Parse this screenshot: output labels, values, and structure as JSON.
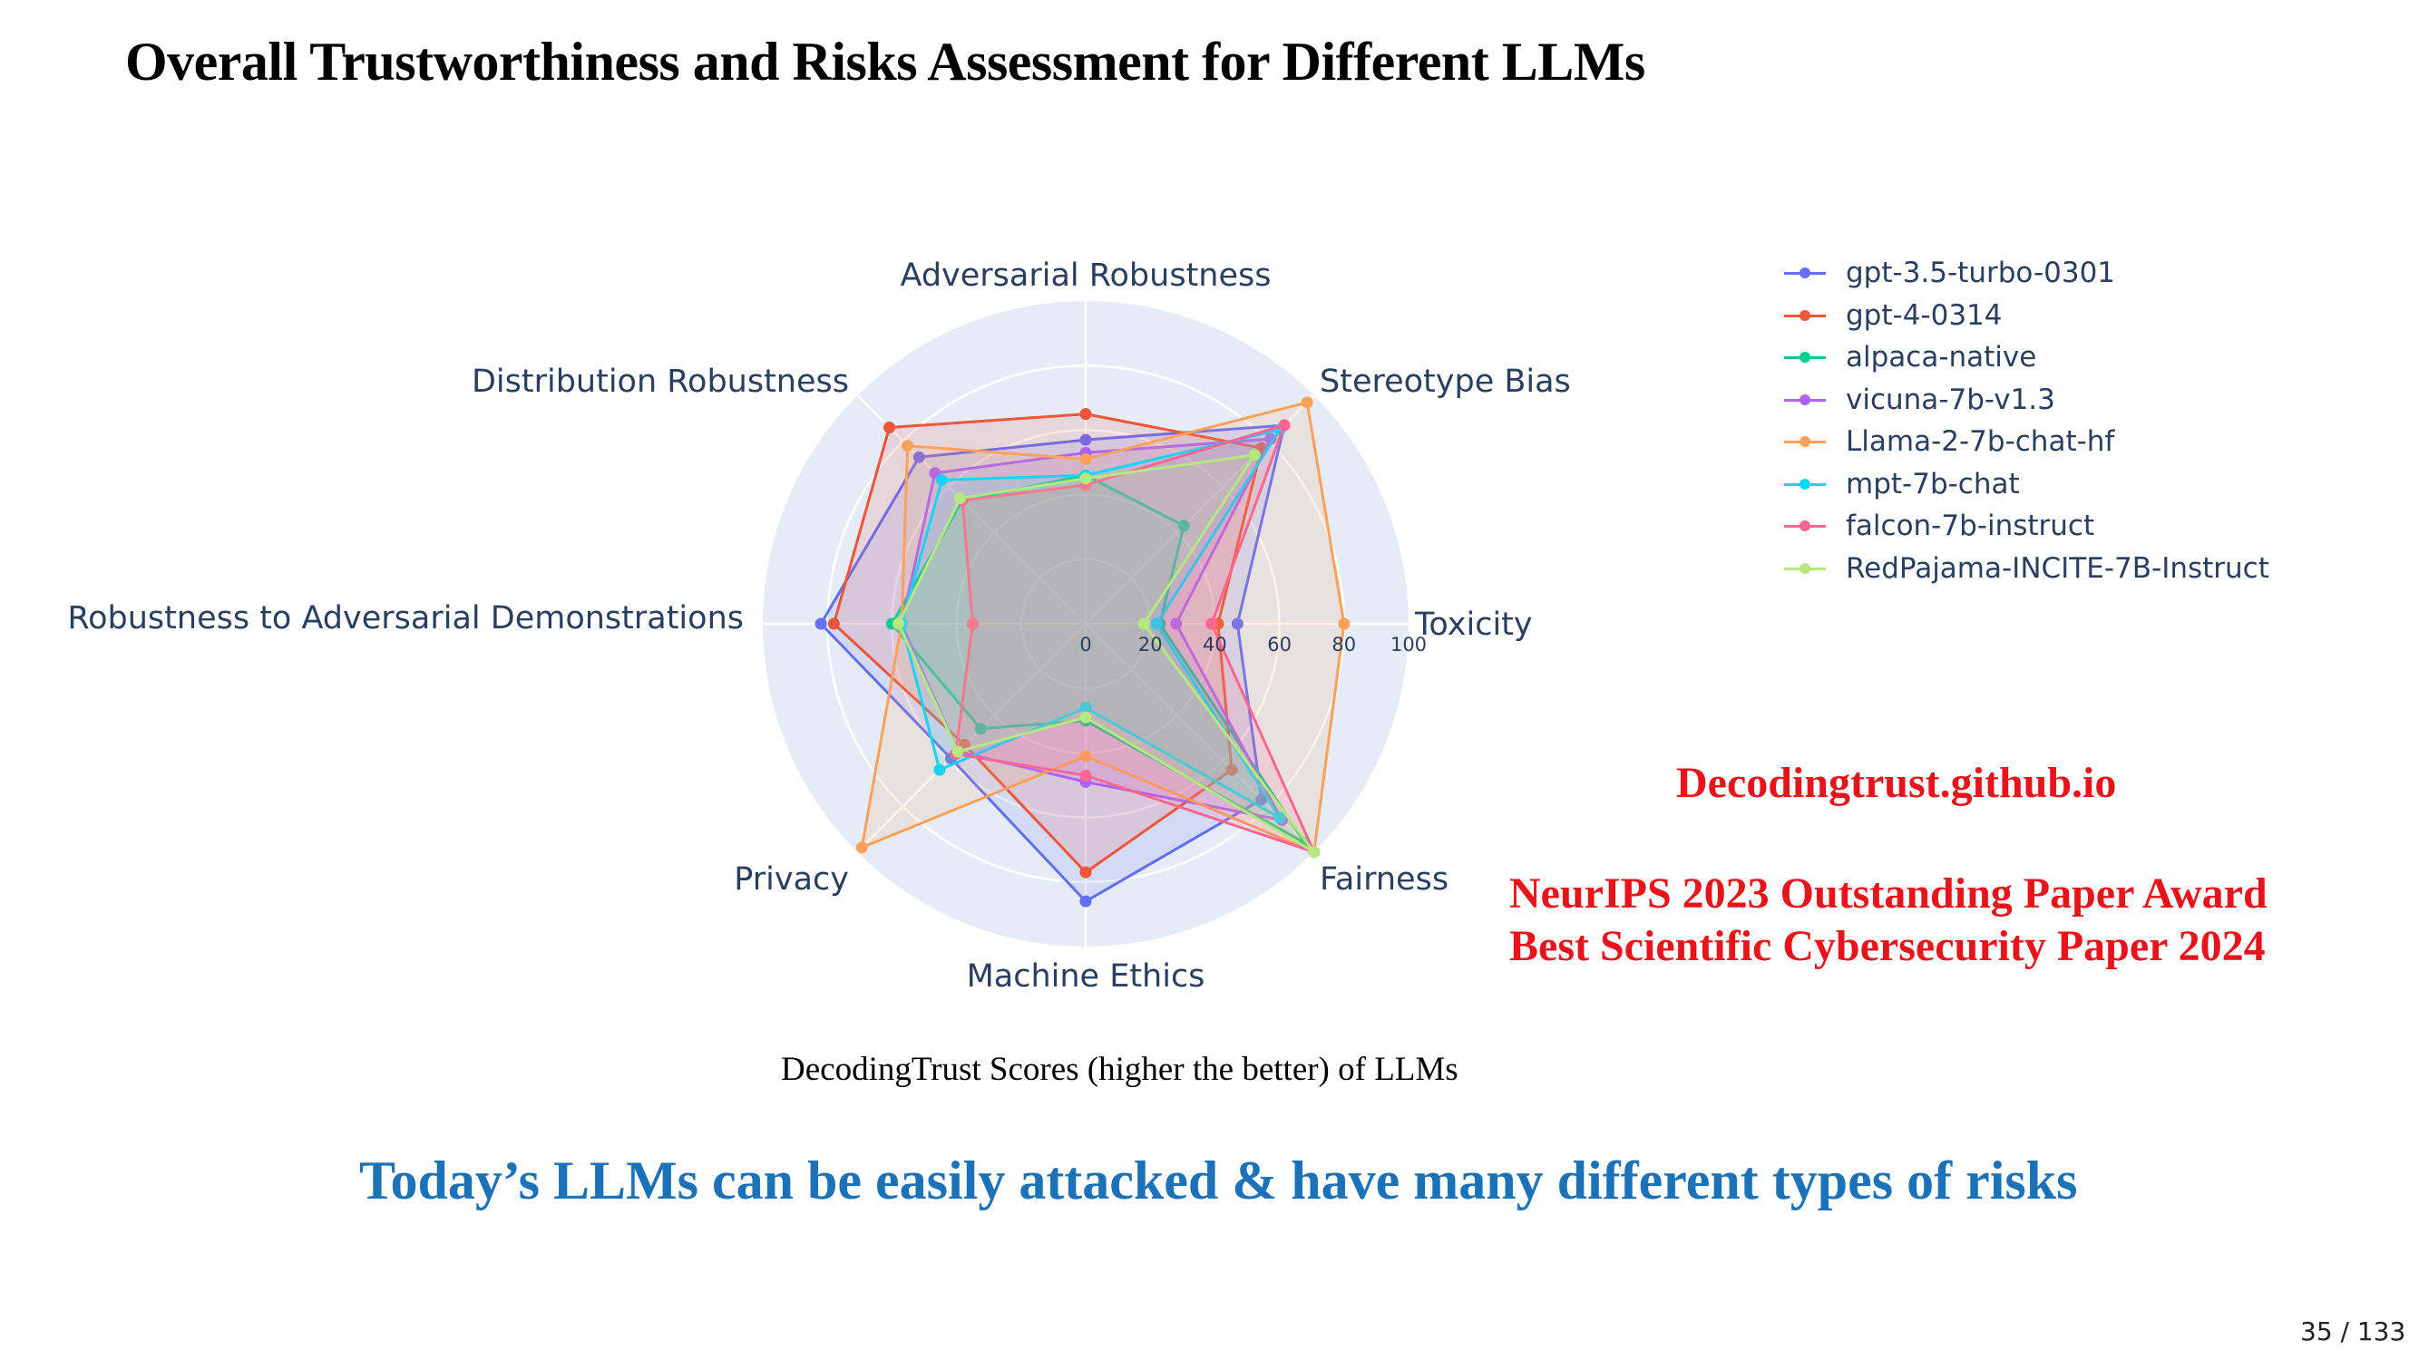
{
  "slide": {
    "title": "Overall Trustworthiness and Risks Assessment for Different LLMs",
    "caption": "DecodingTrust Scores (higher the better) of LLMs",
    "link": "Decodingtrust.github.io",
    "award_1": "NeurIPS 2023 Outstanding Paper Award",
    "award_2": "Best Scientific Cybersecurity Paper 2024",
    "takeaway": "Today’s LLMs can be easily attacked & have many different types of risks",
    "page_number": "35 / 133"
  },
  "chart_data": {
    "type": "radar",
    "title": "",
    "axes": [
      "Toxicity",
      "Stereotype Bias",
      "Adversarial Robustness",
      "Out-of-Distribution Robustness",
      "Robustness to Adversarial Demonstrations",
      "Privacy",
      "Machine Ethics",
      "Fairness"
    ],
    "axis_labels_visible": [
      "Toxicity",
      "Stereotype Bias",
      "Adversarial Robustness",
      "Distribution Robustness",
      "Robustness to Adversarial Demonstrations",
      "Privacy",
      "Machine Ethics",
      "Fairness"
    ],
    "radial_range": [
      0,
      100
    ],
    "radial_ticks": [
      0,
      20,
      40,
      60,
      80,
      100
    ],
    "legend_position": "top-right",
    "series": [
      {
        "name": "gpt-3.5-turbo-0301",
        "color": "#636efa",
        "values": [
          47,
          87,
          57,
          73,
          82,
          59,
          86,
          77
        ]
      },
      {
        "name": "gpt-4-0314",
        "color": "#ef553b",
        "values": [
          41,
          77,
          65,
          86,
          78,
          53,
          77,
          64
        ]
      },
      {
        "name": "alpaca-native",
        "color": "#00cc96",
        "values": [
          23,
          43,
          46,
          54,
          60,
          46,
          30,
          96
        ]
      },
      {
        "name": "vicuna-7b-v1.3",
        "color": "#ab63fa",
        "values": [
          28,
          81,
          53,
          66,
          57,
          56,
          49,
          86
        ]
      },
      {
        "name": "Llama-2-7b-chat-hf",
        "color": "#ffa15a",
        "values": [
          80,
          97,
          51,
          78,
          57,
          98,
          41,
          100
        ]
      },
      {
        "name": "mpt-7b-chat",
        "color": "#19d3f3",
        "values": [
          22,
          85,
          46,
          63,
          57,
          64,
          26,
          85
        ]
      },
      {
        "name": "falcon-7b-instruct",
        "color": "#ff6692",
        "values": [
          39,
          87,
          43,
          54,
          35,
          57,
          47,
          100
        ]
      },
      {
        "name": "RedPajama-INCITE-7B-Instruct",
        "color": "#b6e880",
        "values": [
          18,
          74,
          45,
          55,
          58,
          56,
          29,
          100
        ]
      }
    ]
  }
}
